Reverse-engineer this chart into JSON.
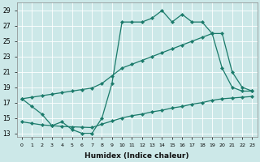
{
  "xlabel": "Humidex (Indice chaleur)",
  "bg_color": "#cce8e8",
  "line_color": "#1a7a6a",
  "grid_color": "#ffffff",
  "xlim": [
    -0.5,
    23.5
  ],
  "ylim": [
    12.5,
    30
  ],
  "xticks": [
    0,
    1,
    2,
    3,
    4,
    5,
    6,
    7,
    8,
    9,
    10,
    11,
    12,
    13,
    14,
    15,
    16,
    17,
    18,
    19,
    20,
    21,
    22,
    23
  ],
  "yticks": [
    13,
    15,
    17,
    19,
    21,
    23,
    25,
    27,
    29
  ],
  "curve1_x": [
    0,
    1,
    2,
    3,
    4,
    5,
    6,
    7,
    8,
    9,
    10,
    11,
    12,
    13,
    14,
    15,
    16,
    17,
    18,
    19,
    20,
    21,
    22,
    23
  ],
  "curve1_y": [
    17.5,
    16.5,
    15.5,
    14.0,
    14.5,
    13.5,
    13.0,
    13.0,
    15.0,
    19.5,
    27.5,
    27.5,
    27.5,
    28.0,
    29.0,
    27.5,
    28.5,
    27.5,
    27.5,
    26.0,
    21.5,
    19.0,
    18.5,
    18.5
  ],
  "curve2_x": [
    0,
    1,
    2,
    3,
    4,
    5,
    6,
    7,
    8,
    9,
    10,
    11,
    12,
    13,
    14,
    15,
    16,
    17,
    18,
    19,
    20,
    21,
    22,
    23
  ],
  "curve2_y": [
    14.5,
    14.3,
    14.1,
    14.0,
    13.9,
    13.85,
    13.8,
    13.75,
    14.2,
    14.6,
    15.0,
    15.3,
    15.5,
    15.8,
    16.0,
    16.3,
    16.5,
    16.8,
    17.0,
    17.3,
    17.5,
    17.6,
    17.7,
    17.8
  ],
  "curve3_x": [
    0,
    1,
    2,
    3,
    4,
    5,
    6,
    7,
    8,
    9,
    10,
    11,
    12,
    13,
    14,
    15,
    16,
    17,
    18,
    19,
    20,
    21,
    22,
    23
  ],
  "curve3_y": [
    17.5,
    17.7,
    17.9,
    18.1,
    18.3,
    18.5,
    18.7,
    18.9,
    19.5,
    20.5,
    21.5,
    22.0,
    22.5,
    23.0,
    23.5,
    24.0,
    24.5,
    25.0,
    25.5,
    26.0,
    26.0,
    21.0,
    19.0,
    18.5
  ]
}
